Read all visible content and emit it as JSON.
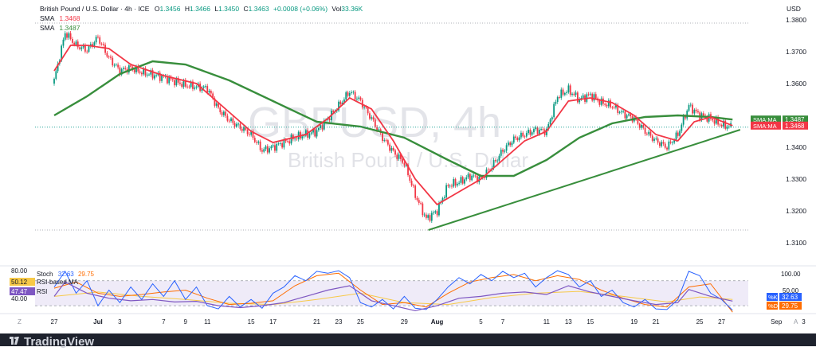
{
  "header": {
    "symbol": "British Pound / U.S. Dollar · 4h · ICE",
    "o_label": "O",
    "o_value": "1.3456",
    "h_label": "H",
    "h_value": "1.3466",
    "l_label": "L",
    "l_value": "1.3450",
    "c_label": "C",
    "c_value": "1.3463",
    "change": "+0.0008 (+0.06%)",
    "vol_label": "Vol",
    "vol_value": "33.36K",
    "sma1_label": "SMA",
    "sma1_value": "1.3468",
    "sma2_label": "SMA",
    "sma2_value": "1.3487"
  },
  "currency": "USD",
  "watermark": {
    "title": "GBPUSD, 4h",
    "subtitle": "British Pound / U.S. Dollar"
  },
  "price_axis": {
    "ticks": [
      "1.3800",
      "1.3700",
      "1.3600",
      "1.3400",
      "1.3300",
      "1.3200",
      "1.3100"
    ],
    "tick_values": [
      1.38,
      1.37,
      1.36,
      1.34,
      1.33,
      1.32,
      1.31
    ]
  },
  "price_labels": [
    {
      "label": "SMA:MA",
      "value": "1.3487",
      "num": 1.3487,
      "color": "#388e3c"
    },
    {
      "label": "SMA:MA",
      "value": "1.3468",
      "num": 1.3468,
      "color": "#f23645"
    }
  ],
  "time_axis": [
    {
      "label": "27",
      "t": 0.0
    },
    {
      "label": "Jul",
      "t": 4.0
    },
    {
      "label": "3",
      "t": 6.0
    },
    {
      "label": "7",
      "t": 10.0
    },
    {
      "label": "9",
      "t": 12.0
    },
    {
      "label": "11",
      "t": 14.0
    },
    {
      "label": "15",
      "t": 18.0
    },
    {
      "label": "17",
      "t": 20.0
    },
    {
      "label": "21",
      "t": 24.0
    },
    {
      "label": "23",
      "t": 26.0
    },
    {
      "label": "25",
      "t": 28.0
    },
    {
      "label": "29",
      "t": 32.0
    },
    {
      "label": "Aug",
      "t": 35.0
    },
    {
      "label": "5",
      "t": 39.0
    },
    {
      "label": "7",
      "t": 41.0
    },
    {
      "label": "11",
      "t": 45.0
    },
    {
      "label": "13",
      "t": 47.0
    },
    {
      "label": "15",
      "t": 49.0
    },
    {
      "label": "19",
      "t": 53.0
    },
    {
      "label": "21",
      "t": 55.0
    },
    {
      "label": "25",
      "t": 59.0
    },
    {
      "label": "27",
      "t": 61.0
    },
    {
      "label": "Sep",
      "t": 66.0
    },
    {
      "label": "3",
      "t": 68.5
    }
  ],
  "time_axis_corner_left": "Z",
  "time_axis_corner_right": "A",
  "oscillator": {
    "stoch_label": "Stoch",
    "stoch_k_value": "32.63",
    "stoch_d_value": "29.75",
    "rsi_ma_label": "RSI-based MA",
    "rsi_ma_value": "50.12",
    "rsi_label": "RSI",
    "rsi_value": "47.47",
    "axis_ticks": [
      "80.00",
      "100.00",
      "50.00",
      "40.00"
    ],
    "k_badge": "%K",
    "k_badge_value": "32.63",
    "d_badge": "%D",
    "d_badge_value": "29.75"
  },
  "brand": "TradingView",
  "colors": {
    "up": "#089981",
    "down": "#f23645",
    "sma_fast": "#f23645",
    "sma_slow": "#388e3c",
    "trendline": "#388e3c",
    "rsi": "#7e57c2",
    "stoch_k": "#2962ff",
    "stoch_d": "#ff6d00"
  },
  "chart_data": {
    "type": "candlestick",
    "timeframe": "4h",
    "close_path": [
      {
        "t": 0.0,
        "v": 1.361
      },
      {
        "t": 1.0,
        "v": 1.376
      },
      {
        "t": 2.0,
        "v": 1.372
      },
      {
        "t": 3.0,
        "v": 1.3705
      },
      {
        "t": 4.0,
        "v": 1.3745
      },
      {
        "t": 5.0,
        "v": 1.368
      },
      {
        "t": 6.0,
        "v": 1.364
      },
      {
        "t": 7.0,
        "v": 1.365
      },
      {
        "t": 8.0,
        "v": 1.3635
      },
      {
        "t": 10.0,
        "v": 1.362
      },
      {
        "t": 12.0,
        "v": 1.3595
      },
      {
        "t": 14.0,
        "v": 1.3585
      },
      {
        "t": 15.0,
        "v": 1.352
      },
      {
        "t": 16.0,
        "v": 1.3485
      },
      {
        "t": 18.0,
        "v": 1.344
      },
      {
        "t": 19.0,
        "v": 1.339
      },
      {
        "t": 20.0,
        "v": 1.34
      },
      {
        "t": 22.0,
        "v": 1.343
      },
      {
        "t": 24.0,
        "v": 1.345
      },
      {
        "t": 26.0,
        "v": 1.353
      },
      {
        "t": 27.0,
        "v": 1.3575
      },
      {
        "t": 28.0,
        "v": 1.3545
      },
      {
        "t": 29.0,
        "v": 1.349
      },
      {
        "t": 30.0,
        "v": 1.343
      },
      {
        "t": 31.0,
        "v": 1.3385
      },
      {
        "t": 32.0,
        "v": 1.335
      },
      {
        "t": 33.0,
        "v": 1.325
      },
      {
        "t": 34.0,
        "v": 1.3175
      },
      {
        "t": 35.0,
        "v": 1.32
      },
      {
        "t": 36.0,
        "v": 1.328
      },
      {
        "t": 37.0,
        "v": 1.329
      },
      {
        "t": 38.0,
        "v": 1.331
      },
      {
        "t": 39.0,
        "v": 1.33
      },
      {
        "t": 40.0,
        "v": 1.334
      },
      {
        "t": 41.0,
        "v": 1.339
      },
      {
        "t": 42.0,
        "v": 1.3425
      },
      {
        "t": 43.0,
        "v": 1.344
      },
      {
        "t": 44.0,
        "v": 1.3455
      },
      {
        "t": 45.0,
        "v": 1.345
      },
      {
        "t": 46.0,
        "v": 1.356
      },
      {
        "t": 47.0,
        "v": 1.358
      },
      {
        "t": 48.0,
        "v": 1.355
      },
      {
        "t": 49.0,
        "v": 1.3565
      },
      {
        "t": 50.0,
        "v": 1.354
      },
      {
        "t": 51.0,
        "v": 1.353
      },
      {
        "t": 52.0,
        "v": 1.3505
      },
      {
        "t": 53.0,
        "v": 1.349
      },
      {
        "t": 54.0,
        "v": 1.345
      },
      {
        "t": 55.0,
        "v": 1.342
      },
      {
        "t": 56.0,
        "v": 1.34
      },
      {
        "t": 57.0,
        "v": 1.344
      },
      {
        "t": 58.0,
        "v": 1.353
      },
      {
        "t": 59.0,
        "v": 1.35
      },
      {
        "t": 60.0,
        "v": 1.349
      },
      {
        "t": 61.0,
        "v": 1.347
      },
      {
        "t": 62.0,
        "v": 1.3463
      }
    ],
    "sma_fast_path": [
      {
        "t": 0.0,
        "v": 1.364
      },
      {
        "t": 1.5,
        "v": 1.372
      },
      {
        "t": 3.0,
        "v": 1.372
      },
      {
        "t": 5.0,
        "v": 1.371
      },
      {
        "t": 7.0,
        "v": 1.366
      },
      {
        "t": 10.0,
        "v": 1.3625
      },
      {
        "t": 13.0,
        "v": 1.36
      },
      {
        "t": 16.0,
        "v": 1.351
      },
      {
        "t": 18.0,
        "v": 1.345
      },
      {
        "t": 20.0,
        "v": 1.3415
      },
      {
        "t": 23.0,
        "v": 1.344
      },
      {
        "t": 25.0,
        "v": 1.349
      },
      {
        "t": 27.0,
        "v": 1.3555
      },
      {
        "t": 29.0,
        "v": 1.352
      },
      {
        "t": 31.0,
        "v": 1.342
      },
      {
        "t": 33.0,
        "v": 1.33
      },
      {
        "t": 35.0,
        "v": 1.322
      },
      {
        "t": 37.0,
        "v": 1.326
      },
      {
        "t": 39.0,
        "v": 1.33
      },
      {
        "t": 41.0,
        "v": 1.336
      },
      {
        "t": 43.0,
        "v": 1.342
      },
      {
        "t": 45.0,
        "v": 1.345
      },
      {
        "t": 47.0,
        "v": 1.3545
      },
      {
        "t": 49.0,
        "v": 1.3555
      },
      {
        "t": 51.0,
        "v": 1.354
      },
      {
        "t": 53.0,
        "v": 1.35
      },
      {
        "t": 55.0,
        "v": 1.344
      },
      {
        "t": 57.0,
        "v": 1.342
      },
      {
        "t": 58.5,
        "v": 1.348
      },
      {
        "t": 60.0,
        "v": 1.3495
      },
      {
        "t": 62.0,
        "v": 1.3468
      }
    ],
    "sma_slow_path": [
      {
        "t": 0.0,
        "v": 1.35
      },
      {
        "t": 3.0,
        "v": 1.356
      },
      {
        "t": 6.0,
        "v": 1.363
      },
      {
        "t": 9.0,
        "v": 1.367
      },
      {
        "t": 12.0,
        "v": 1.366
      },
      {
        "t": 16.0,
        "v": 1.361
      },
      {
        "t": 20.0,
        "v": 1.3545
      },
      {
        "t": 24.0,
        "v": 1.348
      },
      {
        "t": 28.0,
        "v": 1.3465
      },
      {
        "t": 32.0,
        "v": 1.343
      },
      {
        "t": 36.0,
        "v": 1.336
      },
      {
        "t": 39.0,
        "v": 1.331
      },
      {
        "t": 42.0,
        "v": 1.331
      },
      {
        "t": 45.0,
        "v": 1.336
      },
      {
        "t": 48.0,
        "v": 1.343
      },
      {
        "t": 51.0,
        "v": 1.3475
      },
      {
        "t": 54.0,
        "v": 1.3495
      },
      {
        "t": 57.0,
        "v": 1.35
      },
      {
        "t": 60.0,
        "v": 1.3495
      },
      {
        "t": 62.0,
        "v": 1.3487
      }
    ],
    "trendline": [
      {
        "t": 34.2,
        "v": 1.314
      },
      {
        "t": 62.7,
        "v": 1.3455
      }
    ],
    "horizontal_lines": [
      1.379,
      1.314
    ],
    "osc_ylim": [
      30,
      100
    ],
    "rsi_path": [
      {
        "t": 0,
        "v": 55
      },
      {
        "t": 1,
        "v": 78
      },
      {
        "t": 3,
        "v": 60
      },
      {
        "t": 5,
        "v": 52
      },
      {
        "t": 7,
        "v": 48
      },
      {
        "t": 9,
        "v": 50
      },
      {
        "t": 11,
        "v": 46
      },
      {
        "t": 13,
        "v": 47
      },
      {
        "t": 15,
        "v": 40
      },
      {
        "t": 17,
        "v": 37
      },
      {
        "t": 19,
        "v": 40
      },
      {
        "t": 21,
        "v": 45
      },
      {
        "t": 23,
        "v": 55
      },
      {
        "t": 25,
        "v": 65
      },
      {
        "t": 27,
        "v": 72
      },
      {
        "t": 29,
        "v": 48
      },
      {
        "t": 31,
        "v": 40
      },
      {
        "t": 33,
        "v": 32
      },
      {
        "t": 35,
        "v": 40
      },
      {
        "t": 37,
        "v": 52
      },
      {
        "t": 39,
        "v": 55
      },
      {
        "t": 41,
        "v": 60
      },
      {
        "t": 43,
        "v": 62
      },
      {
        "t": 45,
        "v": 58
      },
      {
        "t": 47,
        "v": 72
      },
      {
        "t": 49,
        "v": 62
      },
      {
        "t": 51,
        "v": 55
      },
      {
        "t": 53,
        "v": 48
      },
      {
        "t": 55,
        "v": 42
      },
      {
        "t": 57,
        "v": 45
      },
      {
        "t": 58,
        "v": 66
      },
      {
        "t": 60,
        "v": 55
      },
      {
        "t": 62,
        "v": 47.47
      }
    ],
    "rsi_ma_path": [
      {
        "t": 0,
        "v": 55
      },
      {
        "t": 4,
        "v": 62
      },
      {
        "t": 8,
        "v": 55
      },
      {
        "t": 12,
        "v": 50
      },
      {
        "t": 16,
        "v": 44
      },
      {
        "t": 20,
        "v": 42
      },
      {
        "t": 24,
        "v": 50
      },
      {
        "t": 28,
        "v": 60
      },
      {
        "t": 32,
        "v": 45
      },
      {
        "t": 36,
        "v": 42
      },
      {
        "t": 40,
        "v": 53
      },
      {
        "t": 44,
        "v": 60
      },
      {
        "t": 48,
        "v": 63
      },
      {
        "t": 52,
        "v": 55
      },
      {
        "t": 56,
        "v": 46
      },
      {
        "t": 59,
        "v": 54
      },
      {
        "t": 62,
        "v": 50.12
      }
    ],
    "stoch_k_path": [
      {
        "t": 0,
        "v": 70
      },
      {
        "t": 1,
        "v": 95
      },
      {
        "t": 2,
        "v": 60
      },
      {
        "t": 3,
        "v": 80
      },
      {
        "t": 4,
        "v": 40
      },
      {
        "t": 5,
        "v": 65
      },
      {
        "t": 6,
        "v": 45
      },
      {
        "t": 7,
        "v": 70
      },
      {
        "t": 8,
        "v": 50
      },
      {
        "t": 9,
        "v": 75
      },
      {
        "t": 10,
        "v": 55
      },
      {
        "t": 11,
        "v": 80
      },
      {
        "t": 12,
        "v": 50
      },
      {
        "t": 13,
        "v": 70
      },
      {
        "t": 14,
        "v": 40
      },
      {
        "t": 15,
        "v": 35
      },
      {
        "t": 16,
        "v": 55
      },
      {
        "t": 17,
        "v": 38
      },
      {
        "t": 18,
        "v": 50
      },
      {
        "t": 19,
        "v": 36
      },
      {
        "t": 20,
        "v": 60
      },
      {
        "t": 21,
        "v": 70
      },
      {
        "t": 22,
        "v": 88
      },
      {
        "t": 23,
        "v": 80
      },
      {
        "t": 24,
        "v": 95
      },
      {
        "t": 25,
        "v": 92
      },
      {
        "t": 26,
        "v": 96
      },
      {
        "t": 27,
        "v": 85
      },
      {
        "t": 28,
        "v": 45
      },
      {
        "t": 29,
        "v": 38
      },
      {
        "t": 30,
        "v": 50
      },
      {
        "t": 31,
        "v": 35
      },
      {
        "t": 32,
        "v": 55
      },
      {
        "t": 33,
        "v": 36
      },
      {
        "t": 34,
        "v": 34
      },
      {
        "t": 35,
        "v": 50
      },
      {
        "t": 36,
        "v": 70
      },
      {
        "t": 37,
        "v": 85
      },
      {
        "t": 38,
        "v": 75
      },
      {
        "t": 39,
        "v": 90
      },
      {
        "t": 40,
        "v": 80
      },
      {
        "t": 41,
        "v": 95
      },
      {
        "t": 42,
        "v": 85
      },
      {
        "t": 43,
        "v": 92
      },
      {
        "t": 44,
        "v": 70
      },
      {
        "t": 45,
        "v": 85
      },
      {
        "t": 46,
        "v": 96
      },
      {
        "t": 47,
        "v": 90
      },
      {
        "t": 48,
        "v": 70
      },
      {
        "t": 49,
        "v": 80
      },
      {
        "t": 50,
        "v": 55
      },
      {
        "t": 51,
        "v": 65
      },
      {
        "t": 52,
        "v": 45
      },
      {
        "t": 53,
        "v": 38
      },
      {
        "t": 54,
        "v": 50
      },
      {
        "t": 55,
        "v": 35
      },
      {
        "t": 56,
        "v": 34
      },
      {
        "t": 57,
        "v": 50
      },
      {
        "t": 58,
        "v": 95
      },
      {
        "t": 59,
        "v": 88
      },
      {
        "t": 60,
        "v": 60
      },
      {
        "t": 61,
        "v": 50
      },
      {
        "t": 62,
        "v": 32.63
      }
    ],
    "stoch_d_path": [
      {
        "t": 0,
        "v": 68
      },
      {
        "t": 2,
        "v": 78
      },
      {
        "t": 4,
        "v": 60
      },
      {
        "t": 6,
        "v": 55
      },
      {
        "t": 8,
        "v": 58
      },
      {
        "t": 10,
        "v": 62
      },
      {
        "t": 12,
        "v": 65
      },
      {
        "t": 14,
        "v": 52
      },
      {
        "t": 16,
        "v": 42
      },
      {
        "t": 18,
        "v": 44
      },
      {
        "t": 20,
        "v": 48
      },
      {
        "t": 22,
        "v": 72
      },
      {
        "t": 24,
        "v": 88
      },
      {
        "t": 26,
        "v": 92
      },
      {
        "t": 28,
        "v": 65
      },
      {
        "t": 30,
        "v": 42
      },
      {
        "t": 32,
        "v": 45
      },
      {
        "t": 34,
        "v": 38
      },
      {
        "t": 36,
        "v": 60
      },
      {
        "t": 38,
        "v": 78
      },
      {
        "t": 40,
        "v": 85
      },
      {
        "t": 42,
        "v": 90
      },
      {
        "t": 44,
        "v": 80
      },
      {
        "t": 46,
        "v": 88
      },
      {
        "t": 48,
        "v": 82
      },
      {
        "t": 50,
        "v": 65
      },
      {
        "t": 52,
        "v": 52
      },
      {
        "t": 54,
        "v": 42
      },
      {
        "t": 56,
        "v": 38
      },
      {
        "t": 58,
        "v": 70
      },
      {
        "t": 60,
        "v": 75
      },
      {
        "t": 62,
        "v": 29.75
      }
    ]
  }
}
